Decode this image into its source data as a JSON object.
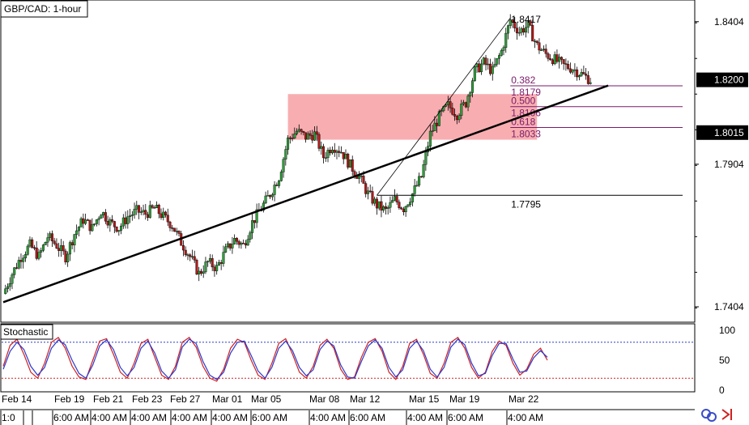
{
  "chart_data": [
    {
      "type": "candlestick",
      "title": "GBP/CAD: 1-hour",
      "symbol": "GBP/CAD",
      "timeframe": "1-hour",
      "ylim": [
        1.735,
        1.848
      ],
      "y_ticks": [
        "1.8404",
        "1.7904",
        "1.7404"
      ],
      "current_price": "1.8200",
      "marked_price": "1.8015",
      "date_labels": [
        "Feb 14",
        "Feb 19",
        "Feb 21",
        "Feb 23",
        "Feb 27",
        "Mar 01",
        "Mar 05",
        "Mar 08",
        "Mar 12",
        "Mar 15",
        "Mar 19",
        "Mar 22"
      ],
      "time_labels": [
        "1:0",
        "",
        "6:00 AM",
        "4:00 AM",
        "4:00 AM",
        "4:00 AM",
        "4:00 AM",
        "6:00 AM",
        "4:00 AM",
        "6:00 AM",
        "4:00 AM",
        "6:00 AM",
        "4:00 AM"
      ],
      "close_path": [
        [
          0,
          1.745
        ],
        [
          2,
          1.752
        ],
        [
          4,
          1.758
        ],
        [
          6,
          1.762
        ],
        [
          8,
          1.758
        ],
        [
          10,
          1.765
        ],
        [
          12,
          1.762
        ],
        [
          14,
          1.758
        ],
        [
          16,
          1.766
        ],
        [
          18,
          1.771
        ],
        [
          20,
          1.768
        ],
        [
          22,
          1.774
        ],
        [
          24,
          1.77
        ],
        [
          26,
          1.768
        ],
        [
          28,
          1.772
        ],
        [
          30,
          1.774
        ],
        [
          32,
          1.773
        ],
        [
          34,
          1.775
        ],
        [
          36,
          1.772
        ],
        [
          38,
          1.769
        ],
        [
          40,
          1.763
        ],
        [
          42,
          1.758
        ],
        [
          44,
          1.752
        ],
        [
          46,
          1.756
        ],
        [
          48,
          1.754
        ],
        [
          50,
          1.76
        ],
        [
          52,
          1.764
        ],
        [
          54,
          1.762
        ],
        [
          56,
          1.77
        ],
        [
          58,
          1.775
        ],
        [
          60,
          1.78
        ],
        [
          62,
          1.786
        ],
        [
          64,
          1.799
        ],
        [
          66,
          1.802
        ],
        [
          68,
          1.8
        ],
        [
          70,
          1.801
        ],
        [
          72,
          1.793
        ],
        [
          74,
          1.797
        ],
        [
          76,
          1.795
        ],
        [
          78,
          1.79
        ],
        [
          80,
          1.786
        ],
        [
          82,
          1.78
        ],
        [
          84,
          1.776
        ],
        [
          86,
          1.774
        ],
        [
          88,
          1.778
        ],
        [
          90,
          1.775
        ],
        [
          92,
          1.78
        ],
        [
          94,
          1.786
        ],
        [
          96,
          1.801
        ],
        [
          98,
          1.807
        ],
        [
          100,
          1.811
        ],
        [
          102,
          1.808
        ],
        [
          104,
          1.812
        ],
        [
          106,
          1.823
        ],
        [
          108,
          1.826
        ],
        [
          110,
          1.823
        ],
        [
          112,
          1.83
        ],
        [
          114,
          1.841
        ],
        [
          116,
          1.837
        ],
        [
          118,
          1.839
        ],
        [
          120,
          1.832
        ],
        [
          122,
          1.829
        ],
        [
          124,
          1.827
        ],
        [
          126,
          1.825
        ],
        [
          128,
          1.824
        ],
        [
          130,
          1.822
        ],
        [
          132,
          1.82
        ]
      ],
      "trendline": {
        "from": [
          0,
          1.742
        ],
        "to": [
          136,
          1.818
        ]
      },
      "fib_swing": {
        "low": [
          84,
          1.7795
        ],
        "high": [
          114,
          1.8417
        ]
      },
      "fibonacci": [
        {
          "ratio": "",
          "price": "1.8417"
        },
        {
          "ratio": "0.382",
          "price": "1.8179"
        },
        {
          "ratio": "0.500",
          "price": "1.8106"
        },
        {
          "ratio": "0.618",
          "price": "1.8033"
        },
        {
          "ratio": "",
          "price": "1.7795"
        }
      ],
      "zone": {
        "x": [
          64,
          120
        ],
        "y": [
          1.799,
          1.815
        ]
      }
    },
    {
      "type": "line",
      "title": "Stochastic",
      "ylim": [
        0,
        100
      ],
      "y_ticks": [
        "100",
        "50",
        "0"
      ],
      "levels": [
        80,
        20
      ],
      "series": [
        {
          "values": [
            40,
            75,
            85,
            60,
            30,
            20,
            45,
            80,
            88,
            70,
            40,
            22,
            18,
            50,
            82,
            86,
            60,
            30,
            20,
            45,
            78,
            85,
            55,
            25,
            18,
            40,
            80,
            88,
            72,
            40,
            20,
            15,
            35,
            70,
            85,
            80,
            50,
            25,
            18,
            45,
            78,
            86,
            60,
            30,
            20,
            40,
            75,
            85,
            70,
            35,
            18,
            22,
            55,
            80,
            86,
            65,
            30,
            18,
            40,
            78,
            85,
            60,
            28,
            20,
            45,
            80,
            88,
            70,
            38,
            20,
            30,
            65,
            82,
            75,
            45,
            25,
            35,
            60,
            70,
            50
          ]
        },
        {
          "values": [
            35,
            65,
            80,
            68,
            40,
            25,
            38,
            70,
            84,
            76,
            50,
            28,
            20,
            42,
            74,
            84,
            68,
            38,
            24,
            38,
            70,
            82,
            62,
            32,
            20,
            34,
            72,
            85,
            78,
            48,
            25,
            18,
            30,
            62,
            80,
            82,
            58,
            32,
            20,
            38,
            70,
            82,
            66,
            38,
            24,
            34,
            68,
            82,
            74,
            42,
            22,
            20,
            48,
            74,
            84,
            70,
            38,
            22,
            34,
            70,
            82,
            66,
            35,
            22,
            38,
            72,
            85,
            76,
            45,
            24,
            28,
            58,
            78,
            78,
            52,
            30,
            32,
            54,
            66,
            55
          ]
        }
      ]
    }
  ]
}
